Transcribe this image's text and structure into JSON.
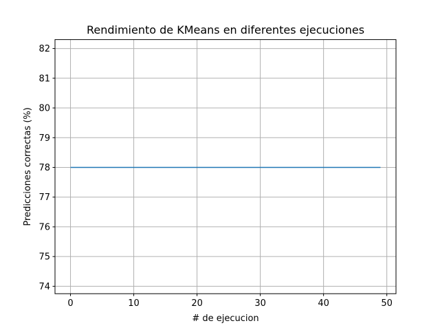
{
  "chart_data": {
    "type": "line",
    "title": "Rendimiento de KMeans en diferentes ejecuciones",
    "xlabel": "# de ejecucion",
    "ylabel": "Predicciones correctas (%)",
    "xlim": [
      -2.45,
      51.45
    ],
    "ylim": [
      73.75,
      82.3
    ],
    "xticks": [
      0,
      10,
      20,
      30,
      40,
      50
    ],
    "yticks": [
      74,
      75,
      76,
      77,
      78,
      79,
      80,
      81,
      82
    ],
    "grid": true,
    "series": [
      {
        "color": "#1f77b4",
        "x": [
          0,
          1,
          2,
          3,
          4,
          5,
          6,
          7,
          8,
          9,
          10,
          11,
          12,
          13,
          14,
          15,
          16,
          17,
          18,
          19,
          20,
          21,
          22,
          23,
          24,
          25,
          26,
          27,
          28,
          29,
          30,
          31,
          32,
          33,
          34,
          35,
          36,
          37,
          38,
          39,
          40,
          41,
          42,
          43,
          44,
          45,
          46,
          47,
          48,
          49
        ],
        "y": [
          78,
          78,
          78,
          78,
          78,
          78,
          78,
          78,
          78,
          78,
          78,
          78,
          78,
          78,
          78,
          78,
          78,
          78,
          78,
          78,
          78,
          78,
          78,
          78,
          78,
          78,
          78,
          78,
          78,
          78,
          78,
          78,
          78,
          78,
          78,
          78,
          78,
          78,
          78,
          78,
          78,
          78,
          78,
          78,
          78,
          78,
          78,
          78,
          78,
          78
        ]
      }
    ]
  },
  "colors": {
    "grid": "#b0b0b0",
    "axes": "#000000",
    "background": "#ffffff"
  }
}
